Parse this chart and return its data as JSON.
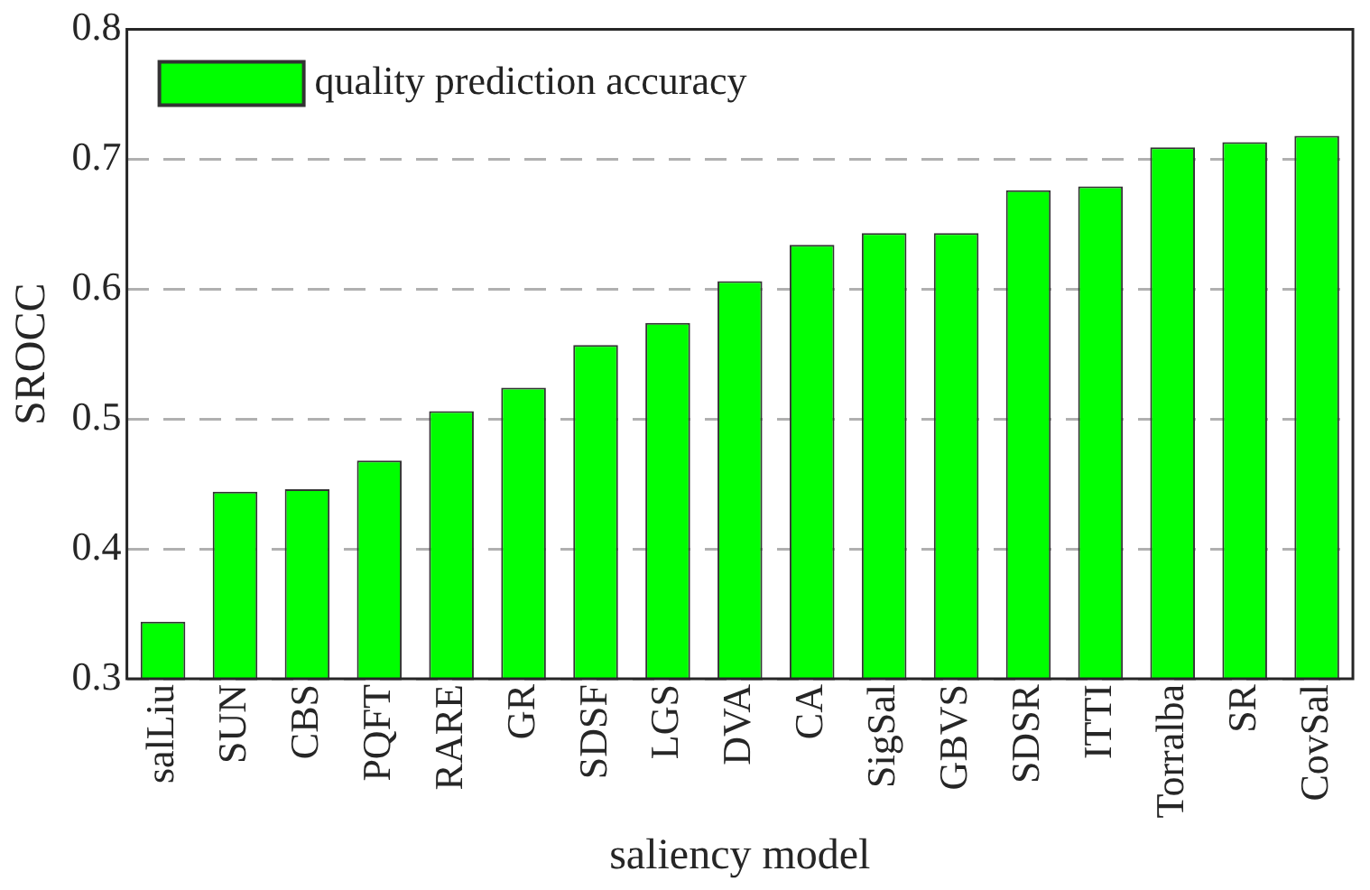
{
  "chart_data": {
    "type": "bar",
    "xlabel": "saliency model",
    "ylabel": "SROCC",
    "categories": [
      "salLiu",
      "SUN",
      "CBS",
      "PQFT",
      "RARE",
      "GR",
      "SDSF",
      "LGS",
      "DVA",
      "CA",
      "SigSal",
      "GBVS",
      "SDSR",
      "ITTI",
      "Torralba",
      "SR",
      "CovSal"
    ],
    "series": [
      {
        "name": "quality prediction accuracy",
        "color": "#00ff00",
        "values": [
          0.344,
          0.444,
          0.446,
          0.468,
          0.506,
          0.524,
          0.557,
          0.574,
          0.606,
          0.634,
          0.643,
          0.643,
          0.676,
          0.679,
          0.709,
          0.713,
          0.718
        ]
      }
    ],
    "ylim": [
      0.3,
      0.8
    ],
    "yticks": [
      0.3,
      0.4,
      0.5,
      0.6,
      0.7,
      0.8
    ],
    "grid": "y",
    "legend": "top left"
  }
}
